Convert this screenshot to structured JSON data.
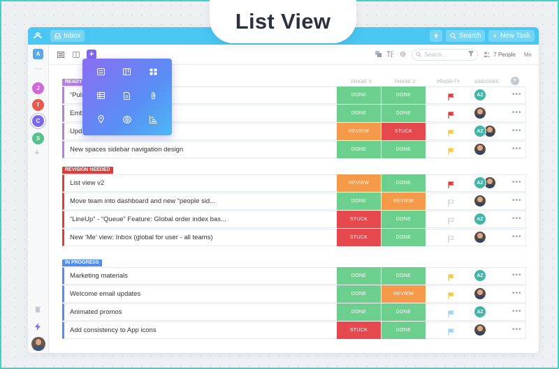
{
  "banner_title": "List View",
  "topbar": {
    "inbox_label": "Inbox",
    "search_label": "Search",
    "new_task_label": "New Task"
  },
  "sidebar": {
    "workspace_initial": "A",
    "spaces": [
      {
        "initial": "J",
        "color": "#d16ad9"
      },
      {
        "initial": "T",
        "color": "#e85a4f"
      },
      {
        "initial": "C",
        "color": "#7b68ee"
      },
      {
        "initial": "S",
        "color": "#55c28c"
      }
    ],
    "add_label": "+"
  },
  "toolbar": {
    "search_placeholder": "Search...",
    "people_label": "7 People",
    "me_label": "Me"
  },
  "columns": {
    "phase3": "PHASE 3",
    "phase2": "PHASE 2",
    "priority": "PRIORITY",
    "assignee": "ASSIGNEE"
  },
  "colors": {
    "done": "#6ccf8e",
    "review": "#f59a4b",
    "stuck": "#e5484d",
    "ready": "#b57bea",
    "revision": "#e53935",
    "in_progress": "#4f8ef0",
    "flag_red": "#e53935",
    "flag_yellow": "#f7c843",
    "flag_blue": "#9dd3f5",
    "flag_gray": "#c6cbd3"
  },
  "groups": [
    {
      "label": "READY",
      "tasks": [
        {
          "name": "“Puls",
          "phase3": "DONE",
          "phase2": "DONE",
          "flag": "red",
          "assignees": [
            "AZ"
          ]
        },
        {
          "name": "Emb",
          "phase3": "DONE",
          "phase2": "DONE",
          "flag": "red",
          "assignees": [
            "photo"
          ]
        },
        {
          "name": "Upd",
          "phase3": "REVIEW",
          "phase2": "STUCK",
          "flag": "yellow",
          "assignees": [
            "AZ",
            "photo"
          ]
        },
        {
          "name": "New spaces sidebar navigation design",
          "phase3": "DONE",
          "phase2": "DONE",
          "flag": "yellow",
          "assignees": [
            "photo"
          ]
        }
      ]
    },
    {
      "label": "REVISION NEEDED",
      "tasks": [
        {
          "name": "List view v2",
          "phase3": "REVIEW",
          "phase2": "DONE",
          "flag": "red",
          "assignees": [
            "AZ",
            "photo"
          ]
        },
        {
          "name": "Move team into dashboard and new “people sid...",
          "phase3": "DONE",
          "phase2": "REVIEW",
          "flag": "gray",
          "assignees": [
            "photo"
          ]
        },
        {
          "name": "“LineUp” - “Queue” Feature: Global order index bas...",
          "phase3": "STUCK",
          "phase2": "DONE",
          "flag": "gray",
          "assignees": [
            "AZ"
          ]
        },
        {
          "name": "New ‘Me’ view: Inbox (global for user - all teams)",
          "phase3": "STUCK",
          "phase2": "DONE",
          "flag": "gray",
          "assignees": [
            "photo"
          ]
        }
      ]
    },
    {
      "label": "IN PROGRESS",
      "tasks": [
        {
          "name": "Marketing  materials",
          "phase3": "DONE",
          "phase2": "DONE",
          "flag": "yellow",
          "assignees": [
            "AZ"
          ]
        },
        {
          "name": "Welcome email updates",
          "phase3": "DONE",
          "phase2": "REVIEW",
          "flag": "yellow",
          "assignees": [
            "photo"
          ]
        },
        {
          "name": "Animated promos",
          "phase3": "DONE",
          "phase2": "DONE",
          "flag": "blue",
          "assignees": [
            "AZ"
          ]
        },
        {
          "name": "Add consistency to App icons",
          "phase3": "STUCK",
          "phase2": "DONE",
          "flag": "blue",
          "assignees": [
            "photo"
          ]
        }
      ]
    }
  ],
  "avatar_az": "AZ",
  "popup_icons": [
    "list-view-icon",
    "board-view-icon",
    "box-view-icon",
    "table-view-icon",
    "doc-view-icon",
    "attachment-view-icon",
    "map-view-icon",
    "mind-map-icon",
    "gantt-view-icon"
  ]
}
